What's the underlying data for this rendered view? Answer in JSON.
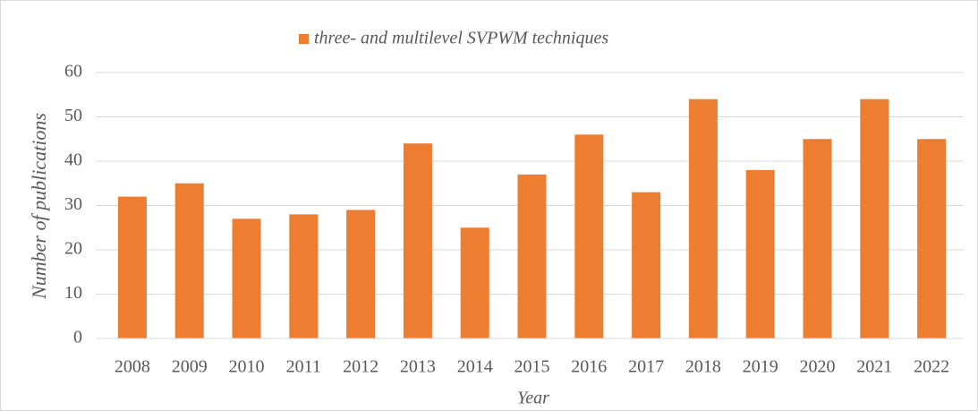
{
  "chart_data": {
    "type": "bar",
    "categories": [
      "2008",
      "2009",
      "2010",
      "2011",
      "2012",
      "2013",
      "2014",
      "2015",
      "2016",
      "2017",
      "2018",
      "2019",
      "2020",
      "2021",
      "2022"
    ],
    "series": [
      {
        "name": "three- and multilevel SVPWM techniques",
        "color": "#ed7d31",
        "values": [
          32,
          35,
          27,
          28,
          29,
          44,
          25,
          37,
          46,
          33,
          54,
          38,
          45,
          54,
          45
        ]
      }
    ],
    "xlabel": "Year",
    "ylabel": "Number of publications",
    "ylim": [
      0,
      60
    ],
    "yticks": [
      0,
      10,
      20,
      30,
      40,
      50,
      60
    ],
    "grid": true,
    "legend": "top"
  }
}
